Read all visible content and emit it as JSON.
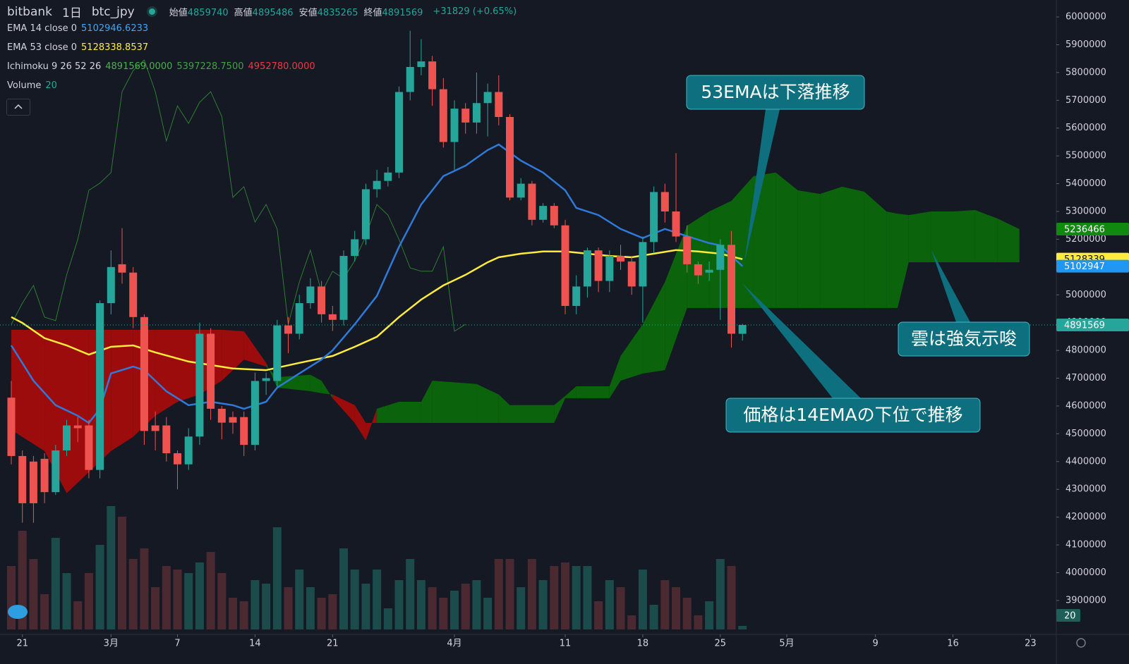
{
  "header": {
    "exchange": "bitbank",
    "interval": "1日",
    "symbol": "btc_jpy",
    "ohlc": [
      {
        "label": "始値",
        "value": "4859740"
      },
      {
        "label": "高値",
        "value": "4895486"
      },
      {
        "label": "安値",
        "value": "4835265"
      },
      {
        "label": "終値",
        "value": "4891569"
      }
    ],
    "change": "+31829 (+0.65%)"
  },
  "legend": [
    {
      "name": "EMA 14 close 0",
      "values": [
        "5102946.6233"
      ],
      "colors": [
        "#42a5f5"
      ]
    },
    {
      "name": "EMA 53 close 0",
      "values": [
        "5128338.8537"
      ],
      "colors": [
        "#ffeb3b"
      ]
    },
    {
      "name": "Ichimoku 9 26 52 26",
      "values": [
        "4891569.0000",
        "5397228.7500",
        "4952780.0000"
      ],
      "colors": [
        "#4caf50",
        "#43a047",
        "#f23645"
      ]
    },
    {
      "name": "Volume",
      "values": [
        "20"
      ],
      "colors": [
        "#26a69a"
      ]
    }
  ],
  "chart_data": {
    "type": "candlestick",
    "xlim": [
      -1.02,
      94.33
    ],
    "ylim": [
      3778000,
      6061000
    ],
    "yticks": [
      6000000,
      5900000,
      5800000,
      5700000,
      5600000,
      5500000,
      5400000,
      5300000,
      5200000,
      5100000,
      5000000,
      4900000,
      4800000,
      4700000,
      4600000,
      4500000,
      4400000,
      4300000,
      4200000,
      4100000,
      4000000,
      3900000
    ],
    "xticks": [
      {
        "value": 1,
        "label": "21"
      },
      {
        "value": 9,
        "label": "3月"
      },
      {
        "value": 15,
        "label": "7"
      },
      {
        "value": 22,
        "label": "14"
      },
      {
        "value": 29,
        "label": "21"
      },
      {
        "value": 40,
        "label": "4月"
      },
      {
        "value": 50,
        "label": "11"
      },
      {
        "value": 57,
        "label": "18"
      },
      {
        "value": 64,
        "label": "25"
      },
      {
        "value": 70,
        "label": "5月"
      },
      {
        "value": 78,
        "label": "9"
      },
      {
        "value": 85,
        "label": "16"
      },
      {
        "value": 92,
        "label": "23"
      }
    ],
    "up_color": "#26a69a",
    "down_color": "#ef5350",
    "x": [
      0,
      1,
      2,
      3,
      4,
      5,
      6,
      7,
      8,
      9,
      10,
      11,
      12,
      13,
      14,
      15,
      16,
      17,
      18,
      19,
      20,
      21,
      22,
      23,
      24,
      25,
      26,
      27,
      28,
      29,
      30,
      31,
      32,
      33,
      34,
      35,
      36,
      37,
      38,
      39,
      40,
      41,
      42,
      43,
      44,
      45,
      46,
      47,
      48,
      49,
      50,
      51,
      52,
      53,
      54,
      55,
      56,
      57,
      58,
      59,
      60,
      61,
      62,
      63,
      64,
      65,
      66
    ],
    "candles": {
      "open": [
        4630000,
        4420000,
        4400000,
        4410000,
        4290000,
        4440000,
        4530000,
        4530000,
        4370000,
        4970000,
        5110000,
        5080000,
        4920000,
        4530000,
        4530000,
        4430000,
        4390000,
        4490000,
        4860000,
        4590000,
        4560000,
        4560000,
        4460000,
        4690000,
        4690000,
        4890000,
        4860000,
        4970000,
        5030000,
        4930000,
        4910000,
        5140000,
        5200000,
        5380000,
        5410000,
        5440000,
        5730000,
        5820000,
        5840000,
        5740000,
        5550000,
        5670000,
        5620000,
        5690000,
        5730000,
        5640000,
        5350000,
        5400000,
        5270000,
        5320000,
        5250000,
        4960000,
        5030000,
        5160000,
        5050000,
        5140000,
        5120000,
        5030000,
        5190000,
        5370000,
        5300000,
        5210000,
        5110000,
        5080000,
        5090000,
        5180000,
        4859740
      ],
      "high": [
        4690000,
        4440000,
        4420000,
        4430000,
        4460000,
        4550000,
        4560000,
        4550000,
        4980000,
        5160000,
        5240000,
        5100000,
        4930000,
        4580000,
        4560000,
        4440000,
        4520000,
        4900000,
        4880000,
        4600000,
        4580000,
        4580000,
        4720000,
        4720000,
        4910000,
        4920000,
        5000000,
        5060000,
        5050000,
        4960000,
        5160000,
        5230000,
        5400000,
        5450000,
        5460000,
        5750000,
        5950000,
        5920000,
        5860000,
        5780000,
        5700000,
        5690000,
        5800000,
        5760000,
        5790000,
        5650000,
        5420000,
        5410000,
        5330000,
        5330000,
        5270000,
        5070000,
        5170000,
        5170000,
        5160000,
        5180000,
        5140000,
        5210000,
        5390000,
        5400000,
        5510000,
        5250000,
        5120000,
        5120000,
        5200000,
        5230000,
        4895486
      ],
      "low": [
        4390000,
        4180000,
        4180000,
        4250000,
        4280000,
        4420000,
        4470000,
        4340000,
        4340000,
        4930000,
        5040000,
        4880000,
        4460000,
        4440000,
        4400000,
        4300000,
        4370000,
        4460000,
        4550000,
        4480000,
        4500000,
        4420000,
        4440000,
        4640000,
        4670000,
        4790000,
        4840000,
        4950000,
        4900000,
        4870000,
        4890000,
        5120000,
        5180000,
        5350000,
        5390000,
        5420000,
        5700000,
        5790000,
        5680000,
        5530000,
        5450000,
        5580000,
        5580000,
        5570000,
        5610000,
        5340000,
        5340000,
        5250000,
        5260000,
        5240000,
        4930000,
        4930000,
        4990000,
        5010000,
        5010000,
        5090000,
        5000000,
        4900000,
        5150000,
        5260000,
        5190000,
        5080000,
        5040000,
        5050000,
        4910000,
        4810000,
        4835265
      ],
      "close": [
        4420000,
        4250000,
        4250000,
        4290000,
        4440000,
        4530000,
        4520000,
        4370000,
        4970000,
        5100000,
        5080000,
        4920000,
        4510000,
        4510000,
        4430000,
        4390000,
        4490000,
        4860000,
        4590000,
        4540000,
        4540000,
        4460000,
        4690000,
        4700000,
        4890000,
        4860000,
        4970000,
        5030000,
        4930000,
        4910000,
        5140000,
        5200000,
        5380000,
        5410000,
        5440000,
        5730000,
        5820000,
        5840000,
        5740000,
        5550000,
        5670000,
        5620000,
        5690000,
        5730000,
        5640000,
        5350000,
        5400000,
        5270000,
        5320000,
        5250000,
        4960000,
        5030000,
        5160000,
        5050000,
        5140000,
        5120000,
        5030000,
        5190000,
        5370000,
        5300000,
        5210000,
        5110000,
        5070000,
        5090000,
        5180000,
        4860000,
        4891569
      ]
    },
    "volume": {
      "lim": [
        0,
        233
      ],
      "up_color": "#1c4b4b",
      "down_color": "#4a2a30",
      "tag": 20,
      "tag_color": "#1e5f5a",
      "values": [
        90,
        140,
        100,
        50,
        130,
        80,
        40,
        80,
        120,
        175,
        160,
        100,
        115,
        60,
        90,
        85,
        80,
        95,
        110,
        80,
        45,
        40,
        70,
        65,
        145,
        60,
        85,
        60,
        45,
        50,
        115,
        85,
        65,
        85,
        30,
        70,
        100,
        70,
        60,
        45,
        55,
        65,
        70,
        45,
        100,
        100,
        60,
        100,
        70,
        90,
        95,
        90,
        90,
        40,
        70,
        60,
        20,
        85,
        35,
        70,
        60,
        45,
        20,
        40,
        100,
        90,
        5
      ]
    },
    "ema14": {
      "color": "#2f7ad8",
      "x": [
        0,
        2,
        4,
        6,
        7,
        8,
        9,
        11,
        12,
        14,
        16,
        18,
        20,
        21,
        23,
        24,
        26,
        28,
        29,
        31,
        33,
        35,
        37,
        39,
        41,
        43,
        44,
        46,
        48,
        50,
        51,
        53,
        55,
        57,
        59,
        61,
        63,
        64,
        66
      ],
      "values": [
        4818000,
        4691000,
        4603000,
        4565000,
        4539000,
        4590000,
        4717000,
        4742000,
        4729000,
        4653000,
        4603000,
        4615000,
        4603000,
        4590000,
        4615000,
        4666000,
        4717000,
        4767000,
        4800000,
        4894000,
        4996000,
        5173000,
        5325000,
        5427000,
        5465000,
        5521000,
        5541000,
        5483000,
        5440000,
        5376000,
        5313000,
        5287000,
        5237000,
        5204000,
        5237000,
        5211000,
        5186000,
        5178000,
        5102946.6233
      ]
    },
    "ema53": {
      "color": "#ffeb3b",
      "x": [
        0,
        1,
        3,
        5,
        7,
        9,
        11,
        13,
        16,
        20,
        23,
        26,
        29,
        31,
        33,
        35,
        37,
        39,
        41,
        43,
        44,
        46,
        48,
        50,
        52,
        54,
        56,
        58,
        60,
        62,
        64,
        66
      ],
      "values": [
        4920000,
        4899000,
        4844000,
        4818000,
        4785000,
        4813000,
        4818000,
        4793000,
        4760000,
        4735000,
        4729000,
        4755000,
        4780000,
        4813000,
        4849000,
        4920000,
        4983000,
        5034000,
        5072000,
        5117000,
        5135000,
        5148000,
        5156000,
        5156000,
        5148000,
        5140000,
        5135000,
        5148000,
        5161000,
        5156000,
        5148000,
        5128338.8537
      ]
    },
    "ichimoku": {
      "up_color": "#0b640b",
      "down_color": "#9c0c0c",
      "x": [
        0,
        3,
        5,
        7,
        9,
        11,
        13,
        15,
        17,
        19,
        21,
        23,
        24,
        27,
        28,
        29,
        31,
        32,
        33,
        35,
        37,
        38,
        42,
        44,
        45,
        49,
        50,
        51,
        54,
        55,
        57,
        59,
        61,
        63,
        65,
        67,
        69,
        71,
        73,
        75,
        77,
        79,
        80,
        81,
        83,
        85,
        87,
        89,
        91
      ],
      "span_a": [
        4514000,
        4438000,
        4286000,
        4362000,
        4438000,
        4489000,
        4565000,
        4615000,
        4641000,
        4691000,
        4767000,
        4742000,
        4704000,
        4712000,
        4691000,
        4628000,
        4539000,
        4476000,
        4590000,
        4615000,
        4615000,
        4691000,
        4679000,
        4641000,
        4603000,
        4603000,
        4636000,
        4671000,
        4671000,
        4780000,
        4894000,
        5046000,
        5249000,
        5300000,
        5338000,
        5427000,
        5440000,
        5376000,
        5363000,
        5389000,
        5371000,
        5300000,
        5292000,
        5287000,
        5300000,
        5300000,
        5305000,
        5275000,
        5236466
      ],
      "span_b": [
        4874000,
        4874000,
        4874000,
        4874000,
        4874000,
        4874000,
        4874000,
        4874000,
        4874000,
        4874000,
        4869000,
        4755000,
        4666000,
        4653000,
        4646000,
        4641000,
        4603000,
        4539000,
        4539000,
        4539000,
        4539000,
        4539000,
        4539000,
        4539000,
        4539000,
        4539000,
        4628000,
        4628000,
        4628000,
        4691000,
        4717000,
        4729000,
        4952780,
        4952780,
        4952780,
        4952780,
        4952780,
        4952780,
        4952780,
        4952780,
        4952780,
        4952780,
        4952780,
        5117000,
        5117000,
        5117000,
        5117000,
        5117000,
        5117000
      ],
      "lagging": {
        "color": "#2e7d32",
        "x": [
          0,
          1,
          2,
          3,
          4,
          5,
          6,
          7,
          8,
          9,
          10,
          11,
          12,
          13,
          14,
          15,
          16,
          17,
          18,
          19,
          20,
          21,
          22,
          23,
          24,
          25,
          26,
          27,
          28,
          29,
          30,
          31,
          32,
          33,
          34,
          35,
          36,
          37,
          38,
          39,
          40,
          41
        ],
        "values": [
          4894000,
          4970000,
          5034000,
          4920000,
          4907000,
          5072000,
          5199000,
          5376000,
          5402000,
          5440000,
          5731000,
          5807000,
          5845000,
          5731000,
          5554000,
          5680000,
          5617000,
          5693000,
          5731000,
          5642000,
          5351000,
          5389000,
          5262000,
          5325000,
          5237000,
          4894000,
          5046000,
          5161000,
          5008000,
          5085000,
          5059000,
          5123000,
          5211000,
          5325000,
          5287000,
          5199000,
          5097000,
          5085000,
          5085000,
          5173000,
          4869000,
          4894000
        ]
      }
    },
    "price_tags": [
      {
        "value": 5236466,
        "color": "#0f8a0f",
        "text_color": "#ffffff"
      },
      {
        "value": 5128339,
        "color": "#ffeb3b",
        "text_color": "#131722"
      },
      {
        "value": 5102947,
        "color": "#2196f3",
        "text_color": "#ffffff"
      },
      {
        "value": 4891569,
        "color": "#26a69a",
        "text_color": "#ffffff"
      }
    ],
    "annotations": [
      {
        "text": "53EMAは下落推移"
      },
      {
        "text": "雲は強気示唆"
      },
      {
        "text": "価格は14EMAの下位で推移"
      }
    ]
  }
}
